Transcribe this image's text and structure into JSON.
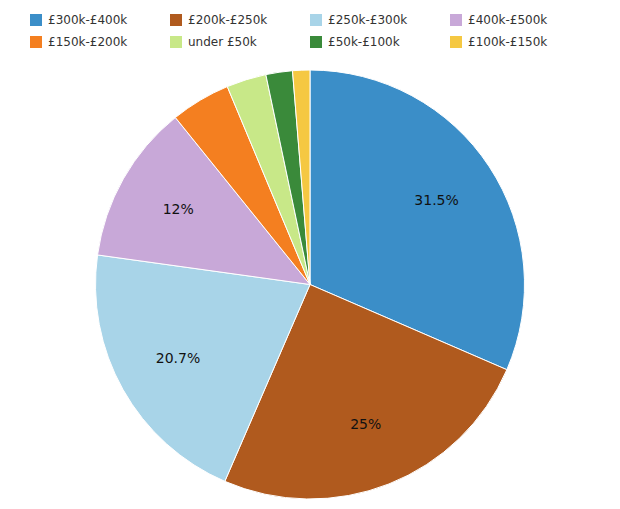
{
  "chart_data": {
    "type": "pie",
    "categories": [
      "£300k-£400k",
      "£200k-£250k",
      "£250k-£300k",
      "£400k-£500k",
      "£150k-£200k",
      "under £50k",
      "£50k-£100k",
      "£100k-£150k"
    ],
    "values": [
      31.5,
      25.0,
      20.7,
      12.0,
      4.5,
      3.0,
      2.0,
      1.3
    ],
    "value_labels": [
      "31.5%",
      "25%",
      "20.7%",
      "12%",
      null,
      null,
      null,
      null
    ],
    "colors": [
      "#3B8EC8",
      "#B05A1E",
      "#A8D4E8",
      "#C8A8D8",
      "#F47F20",
      "#C8E888",
      "#3A8A3A",
      "#F5C842"
    ],
    "data_labels": true,
    "legend": "top"
  }
}
